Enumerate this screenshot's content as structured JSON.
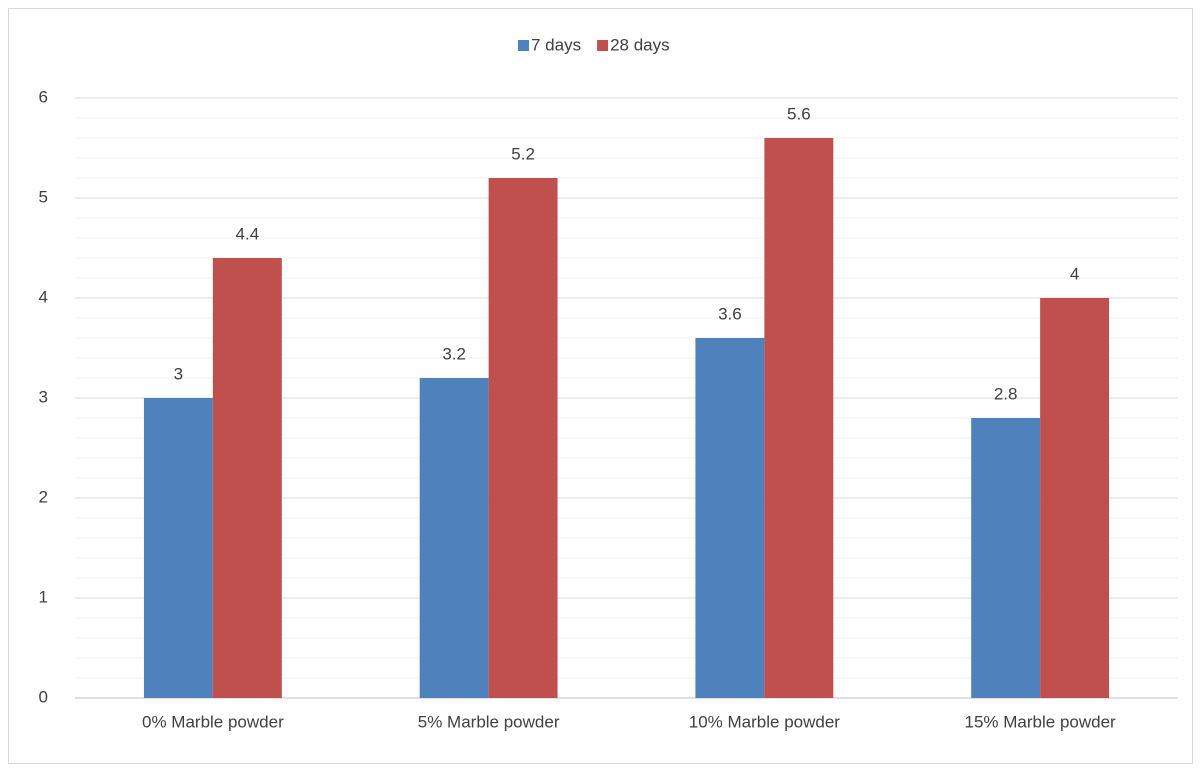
{
  "chart_data": {
    "type": "bar",
    "categories": [
      "0% Marble powder",
      "5% Marble powder",
      "10% Marble powder",
      "15% Marble powder"
    ],
    "series": [
      {
        "name": "7 days",
        "color": "#4f81bd",
        "values": [
          3,
          3.2,
          3.6,
          2.8
        ]
      },
      {
        "name": "28 days",
        "color": "#c0504d",
        "values": [
          4.4,
          5.2,
          5.6,
          4
        ]
      }
    ],
    "ylim": [
      0,
      6
    ],
    "yticks": [
      0,
      1,
      2,
      3,
      4,
      5,
      6
    ],
    "grid": true,
    "minor_grid_step": 0.2,
    "legend": "top",
    "data_labels": true
  }
}
